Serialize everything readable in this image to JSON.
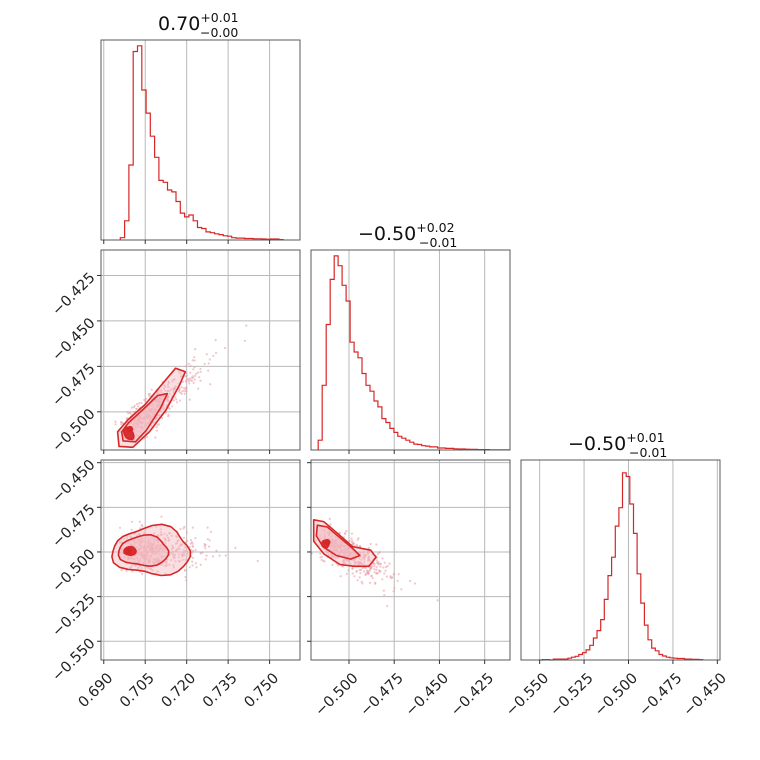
{
  "figure": {
    "type": "corner plot",
    "accent_color": "#d62728",
    "point_color": "#e8a0a8",
    "fill_color": "#f2b8bf"
  },
  "chart_data": [
    {
      "type": "histogram",
      "panel": "param-1-marginal",
      "title": {
        "value": "0.70",
        "sup": "+0.01",
        "sub": "−0.00"
      },
      "x_ticks": [
        0.69,
        0.705,
        0.72,
        0.735,
        0.75
      ],
      "x_tick_labels": [
        "0.690",
        "0.705",
        "0.720",
        "0.735",
        "0.750"
      ],
      "xlim": [
        0.689,
        0.761
      ],
      "bin_edges_start": 0.696,
      "bin_width": 0.00155,
      "counts": [
        0.12,
        1.0,
        3.9,
        9.8,
        10.1,
        7.8,
        6.6,
        5.4,
        4.3,
        3.1,
        3.0,
        2.6,
        2.5,
        2.0,
        1.4,
        1.2,
        1.3,
        1.0,
        0.65,
        0.6,
        0.42,
        0.38,
        0.32,
        0.28,
        0.22,
        0.2,
        0.12,
        0.1,
        0.1,
        0.08,
        0.08,
        0.06,
        0.06,
        0.05,
        0.04,
        0.05,
        0.05,
        0.02
      ],
      "ylim": [
        0,
        10.4
      ],
      "grid": true
    },
    {
      "type": "histogram",
      "panel": "param-2-marginal",
      "title": {
        "value": "−0.50",
        "sup": "+0.02",
        "sub": "−0.01"
      },
      "x_ticks": [
        -0.5,
        -0.475,
        -0.45,
        -0.425
      ],
      "x_tick_labels": [
        "−0.500",
        "−0.475",
        "−0.450",
        "−0.425"
      ],
      "xlim": [
        -0.521,
        -0.411
      ],
      "bin_edges_start": -0.517,
      "bin_width": 0.0022,
      "counts": [
        0.5,
        3.3,
        6.4,
        8.7,
        9.9,
        9.4,
        8.4,
        7.6,
        5.5,
        5.0,
        4.7,
        3.9,
        3.3,
        3.0,
        2.5,
        2.2,
        1.6,
        1.4,
        1.1,
        0.9,
        0.7,
        0.6,
        0.5,
        0.4,
        0.3,
        0.28,
        0.22,
        0.2,
        0.16,
        0.16,
        0.1,
        0.1,
        0.08,
        0.08,
        0.06,
        0.05,
        0.05,
        0.04,
        0.03,
        0.03,
        0.02,
        0.02,
        0.02,
        0.01,
        0.01,
        0.01,
        0.01,
        0.01
      ],
      "ylim": [
        0,
        10.2
      ],
      "grid": true
    },
    {
      "type": "histogram",
      "panel": "param-3-marginal",
      "title": {
        "value": "−0.50",
        "sup": "+0.01",
        "sub": "−0.01"
      },
      "x_ticks": [
        -0.55,
        -0.525,
        -0.5,
        -0.475,
        -0.45
      ],
      "x_tick_labels": [
        "−0.550",
        "−0.525",
        "−0.500",
        "−0.475",
        "−0.450"
      ],
      "xlim": [
        -0.5605,
        -0.4485
      ],
      "bin_edges_start": -0.5505,
      "bin_width": 0.00205,
      "counts": [
        0,
        0.02,
        0.02,
        0,
        0.05,
        0.05,
        0.05,
        0.05,
        0.1,
        0.15,
        0.2,
        0.3,
        0.4,
        0.55,
        0.8,
        1.2,
        1.6,
        2.2,
        3.3,
        4.6,
        5.6,
        7.3,
        8.3,
        10.2,
        10.0,
        8.5,
        6.9,
        4.7,
        3.1,
        1.9,
        1.1,
        0.65,
        0.5,
        0.3,
        0.22,
        0.15,
        0.12,
        0.1,
        0.08,
        0.08,
        0.05,
        0.05,
        0.03,
        0.03,
        0.02
      ],
      "ylim": [
        0,
        10.9
      ],
      "grid": true
    },
    {
      "type": "scatter",
      "panel": "param-1-vs-param-2",
      "x_ticks": [
        0.69,
        0.705,
        0.72,
        0.735,
        0.75
      ],
      "y_ticks": [
        -0.5,
        -0.475,
        -0.45,
        -0.425
      ],
      "y_tick_labels": [
        "−0.500",
        "−0.475",
        "−0.450",
        "−0.425"
      ],
      "xlim": [
        0.689,
        0.761
      ],
      "ylim": [
        -0.521,
        -0.411
      ],
      "density_peak": [
        0.6995,
        -0.5095
      ],
      "grid": true,
      "contours": true
    },
    {
      "type": "scatter",
      "panel": "param-1-vs-param-3",
      "x_ticks": [
        0.69,
        0.705,
        0.72,
        0.735,
        0.75
      ],
      "x_tick_labels": [
        "0.690",
        "0.705",
        "0.720",
        "0.735",
        "0.750"
      ],
      "y_ticks": [
        -0.55,
        -0.525,
        -0.5,
        -0.475,
        -0.45
      ],
      "y_tick_labels": [
        "−0.550",
        "−0.525",
        "−0.500",
        "−0.475",
        "−0.450"
      ],
      "xlim": [
        0.689,
        0.761
      ],
      "ylim": [
        -0.5605,
        -0.4485
      ],
      "density_peak": [
        0.699,
        -0.4995
      ],
      "grid": true,
      "contours": true
    },
    {
      "type": "scatter",
      "panel": "param-2-vs-param-3",
      "x_ticks": [
        -0.5,
        -0.475,
        -0.45,
        -0.425
      ],
      "x_tick_labels": [
        "−0.500",
        "−0.475",
        "−0.450",
        "−0.425"
      ],
      "y_ticks": [
        -0.55,
        -0.525,
        -0.5,
        -0.475,
        -0.45
      ],
      "xlim": [
        -0.521,
        -0.411
      ],
      "ylim": [
        -0.5605,
        -0.4485
      ],
      "density_peak": [
        -0.512,
        -0.4945
      ],
      "grid": true,
      "contours": true
    }
  ]
}
